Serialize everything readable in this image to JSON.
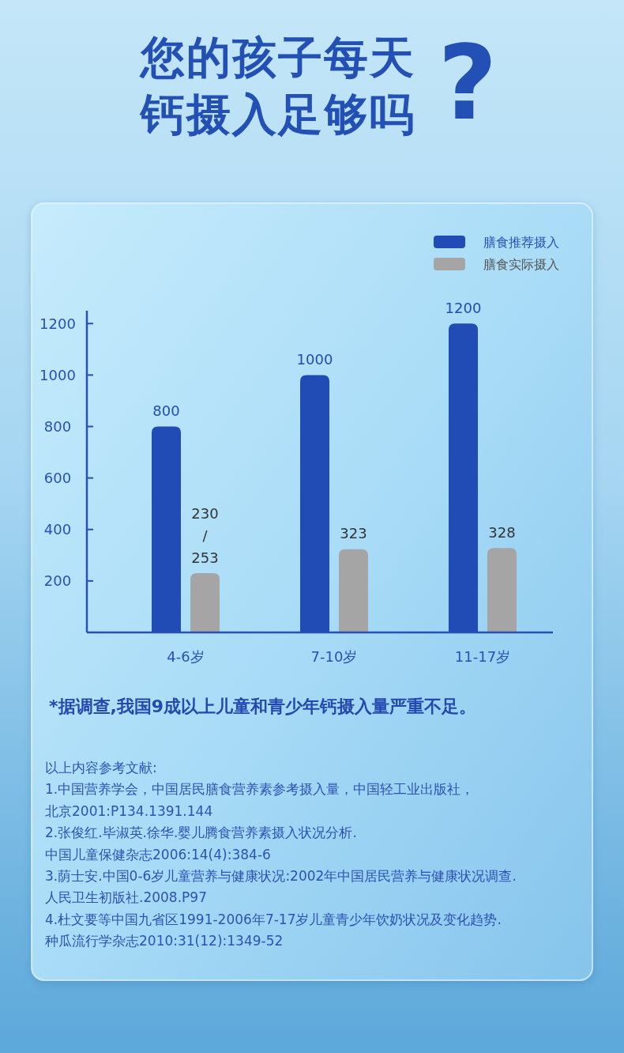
{
  "chart_data": {
    "type": "bar",
    "title": "您的孩子每天钙摄入足够吗?",
    "categories": [
      "4-6岁",
      "7-10岁",
      "11-17岁"
    ],
    "series": [
      {
        "name": "膳食推荐摄入",
        "color": "#214bb5",
        "values": [
          800,
          1000,
          1200
        ],
        "value_labels": [
          "800",
          "1000",
          "1200"
        ]
      },
      {
        "name": "膳食实际摄入",
        "color": "#a5a5a5",
        "values": [
          230,
          323,
          328
        ],
        "value_labels": [
          "230\n/\n253",
          "323",
          "328"
        ]
      }
    ],
    "ylim": [
      0,
      1250
    ],
    "yticks": [
      200,
      400,
      600,
      800,
      1000,
      1200
    ],
    "legend": "top right",
    "annotations": [
      "*据调查,我国9成以上儿童和青少年钙摄入量严重不足。",
      "以上内容参考文献:",
      "1.中国营养学会，中国居民膳食营养素参考摄入量，中国轻工业出版社，",
      "北京2001:P134.1391.144",
      "2.张俊红.毕淑英.徐华.婴儿腾食营养素摄入状况分析.",
      "中国儿童保健杂志2006:14(4):384-6",
      "3.荫士安.中国0-6岁儿童营养与健康状况:2002年中国居民营养与健康状况调查.",
      "人民卫生初版社.2008.P97",
      "4.杜文要等中国九省区1991-2006年7-17岁儿童青少年饮奶状况及变化趋势.",
      "种瓜流行学杂志2010:31(12):1349-52"
    ]
  }
}
